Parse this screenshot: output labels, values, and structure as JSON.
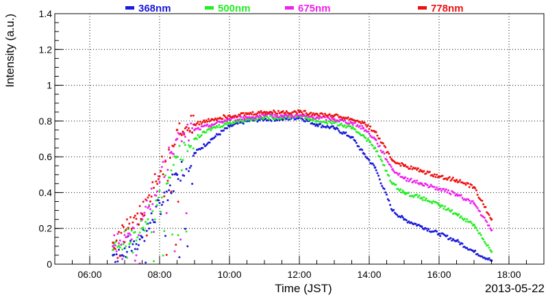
{
  "chart_data": {
    "type": "scatter",
    "xlabel": "Time (JST)",
    "ylabel": "Intensity (a.u.)",
    "date_label": "2013-05-22",
    "x_ticks": [
      "06:00",
      "08:00",
      "10:00",
      "12:00",
      "14:00",
      "16:00",
      "18:00"
    ],
    "xlim": [
      "05:00",
      "19:00"
    ],
    "ylim": [
      0,
      1.4
    ],
    "y_ticks": [
      "0",
      "0.2",
      "0.4",
      "0.6",
      "0.8",
      "1",
      "1.2",
      "1.4"
    ],
    "grid": true,
    "legend_placement": "top",
    "series": [
      {
        "name": "368nm",
        "color": "#1a1adb",
        "x": [
          "06:40",
          "07:30",
          "08:30",
          "09:00",
          "09:30",
          "10:00",
          "10:30",
          "11:00",
          "11:30",
          "12:00",
          "12:30",
          "13:00",
          "13:30",
          "13:50",
          "14:10",
          "14:40",
          "15:00",
          "15:30",
          "16:00",
          "16:30",
          "17:00",
          "17:30"
        ],
        "y": [
          0.05,
          0.15,
          0.5,
          0.62,
          0.7,
          0.77,
          0.8,
          0.81,
          0.81,
          0.82,
          0.78,
          0.76,
          0.71,
          0.62,
          0.54,
          0.3,
          0.25,
          0.21,
          0.17,
          0.13,
          0.07,
          0.02
        ]
      },
      {
        "name": "500nm",
        "color": "#22ee22",
        "x": [
          "06:40",
          "07:30",
          "08:30",
          "09:00",
          "09:30",
          "10:00",
          "10:30",
          "11:00",
          "11:30",
          "12:00",
          "12:30",
          "13:00",
          "13:30",
          "13:50",
          "14:10",
          "14:40",
          "15:00",
          "15:30",
          "16:00",
          "16:30",
          "17:00",
          "17:30"
        ],
        "y": [
          0.08,
          0.2,
          0.6,
          0.7,
          0.76,
          0.79,
          0.81,
          0.82,
          0.82,
          0.83,
          0.8,
          0.79,
          0.76,
          0.72,
          0.65,
          0.45,
          0.4,
          0.37,
          0.33,
          0.28,
          0.22,
          0.07
        ]
      },
      {
        "name": "675nm",
        "color": "#ee22ee",
        "x": [
          "06:40",
          "07:30",
          "08:30",
          "09:00",
          "09:30",
          "10:00",
          "10:30",
          "11:00",
          "11:30",
          "12:00",
          "12:30",
          "13:00",
          "13:30",
          "13:50",
          "14:10",
          "14:40",
          "15:00",
          "15:30",
          "16:00",
          "16:30",
          "17:00",
          "17:30"
        ],
        "y": [
          0.1,
          0.25,
          0.7,
          0.75,
          0.78,
          0.81,
          0.82,
          0.83,
          0.83,
          0.83,
          0.82,
          0.81,
          0.79,
          0.76,
          0.7,
          0.53,
          0.48,
          0.45,
          0.42,
          0.39,
          0.34,
          0.19
        ]
      },
      {
        "name": "778nm",
        "color": "#ee1111",
        "x": [
          "06:40",
          "07:30",
          "08:30",
          "09:00",
          "09:30",
          "10:00",
          "10:30",
          "11:00",
          "11:30",
          "12:00",
          "12:30",
          "13:00",
          "13:30",
          "13:50",
          "14:10",
          "14:40",
          "15:00",
          "15:30",
          "16:00",
          "16:30",
          "17:00",
          "17:30"
        ],
        "y": [
          0.12,
          0.28,
          0.75,
          0.78,
          0.81,
          0.83,
          0.84,
          0.85,
          0.85,
          0.85,
          0.84,
          0.83,
          0.81,
          0.79,
          0.74,
          0.58,
          0.55,
          0.52,
          0.49,
          0.47,
          0.43,
          0.25
        ]
      }
    ]
  }
}
